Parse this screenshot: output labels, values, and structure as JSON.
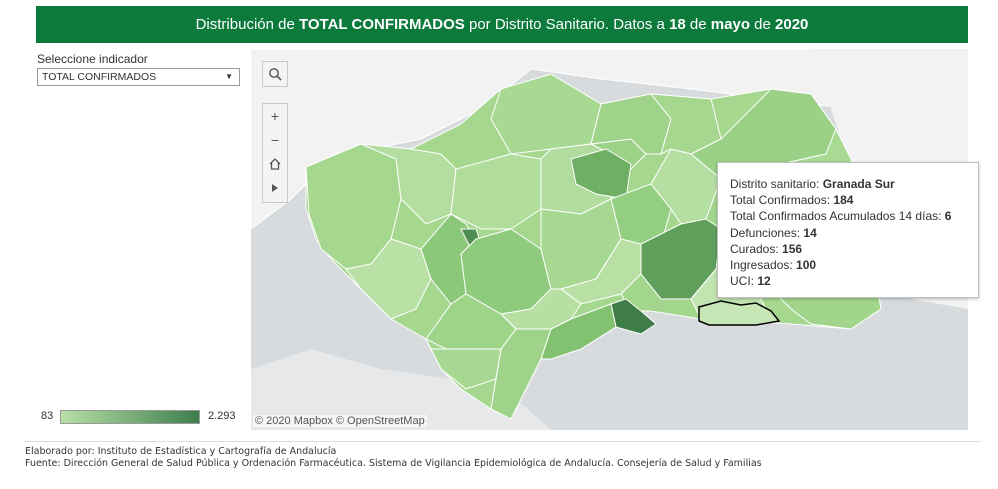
{
  "header": {
    "t1": "Distribución de ",
    "t2": "TOTAL CONFIRMADOS",
    "t3": " por Distrito Sanitario. Datos a ",
    "t4": "18",
    "t5": " de ",
    "t6": "mayo",
    "t7": " de ",
    "t8": "2020"
  },
  "selector": {
    "label": "Seleccione indicador",
    "value": "TOTAL CONFIRMADOS"
  },
  "legend": {
    "min": "83",
    "max": "2.293",
    "color_min": "#b7e0a6",
    "color_max": "#3e7e4e"
  },
  "map": {
    "attribution": "© 2020 Mapbox © OpenStreetMap",
    "sea_color": "#d7dbdd",
    "land_color": "#f2f2f2",
    "highlight_district": "Granada Sur"
  },
  "toolbar": {
    "search_icon": "search-icon",
    "zoom_in": "+",
    "zoom_out": "−",
    "home_icon": "home-icon",
    "play_icon": "play-icon"
  },
  "tooltip": {
    "l1": "Distrito sanitario: ",
    "v1": "Granada Sur",
    "l2": "Total Confirmados: ",
    "v2": "184",
    "l3": "Total Confirmados Acumulados 14 días: ",
    "v3": "6",
    "l4": "Defunciones: ",
    "v4": "14",
    "l5": "Curados: ",
    "v5": "156",
    "l6": "Ingresados: ",
    "v6": "100",
    "l7": "UCI: ",
    "v7": "12"
  },
  "footer": {
    "line1": "Elaborado por: Instituto de Estadística y Cartografía de Andalucía",
    "line2": "Fuente: Dirección General de Salud Pública y Ordenación Farmacéutica. Sistema de Vigilancia Epidemiológica de Andalucía. Consejería de Salud y Familias"
  }
}
